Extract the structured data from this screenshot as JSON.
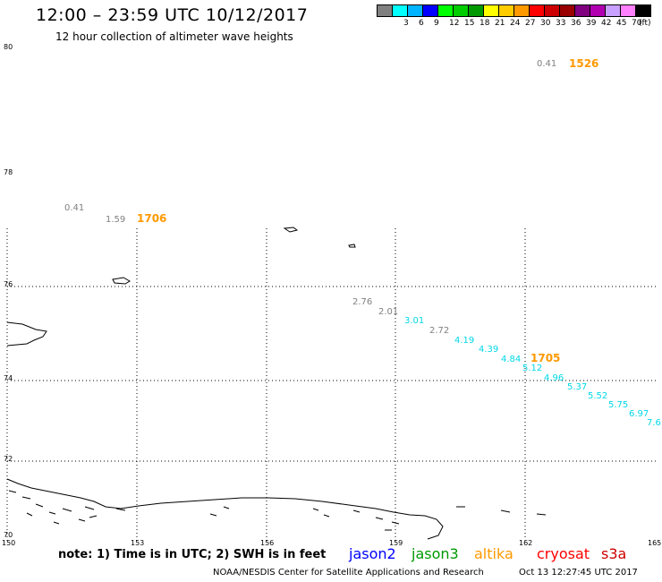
{
  "header": {
    "title": "12:00 – 23:59 UTC 10/12/2017",
    "subtitle": "12 hour collection of altimeter wave heights"
  },
  "legend": {
    "unit": "(ft)",
    "swatches": [
      {
        "color": "#808080",
        "label": ""
      },
      {
        "color": "#00ffff",
        "label": "3"
      },
      {
        "color": "#00b4ff",
        "label": "6"
      },
      {
        "color": "#0000ff",
        "label": "9"
      },
      {
        "color": "#00ff00",
        "label": "12"
      },
      {
        "color": "#00cc00",
        "label": "15"
      },
      {
        "color": "#009900",
        "label": "18"
      },
      {
        "color": "#ffff00",
        "label": "21"
      },
      {
        "color": "#ffcc00",
        "label": "24"
      },
      {
        "color": "#ff9900",
        "label": "27"
      },
      {
        "color": "#ff0000",
        "label": "30"
      },
      {
        "color": "#cc0000",
        "label": "33"
      },
      {
        "color": "#990000",
        "label": "36"
      },
      {
        "color": "#800080",
        "label": "39"
      },
      {
        "color": "#b000b0",
        "label": "42"
      },
      {
        "color": "#c8a0ff",
        "label": "45"
      },
      {
        "color": "#ff80ff",
        "label": "70"
      },
      {
        "color": "#000000",
        "label": ""
      }
    ]
  },
  "axes": {
    "lat_labels": [
      "80",
      "78",
      "76",
      "74",
      "72",
      "70"
    ],
    "lon_labels": [
      "150",
      "153",
      "156",
      "159",
      "162",
      "165"
    ]
  },
  "observations": [
    {
      "value": "0.41",
      "color": "#808080"
    },
    {
      "value": "1526",
      "color": "#ff9900",
      "time": true
    },
    {
      "value": "0.41",
      "color": "#808080"
    },
    {
      "value": "1.59",
      "color": "#808080"
    },
    {
      "value": "1706",
      "color": "#ff9900",
      "time": true
    },
    {
      "value": "2.76",
      "color": "#808080"
    },
    {
      "value": "2.01",
      "color": "#808080"
    },
    {
      "value": "3.01",
      "color": "#00d8e8"
    },
    {
      "value": "2.72",
      "color": "#808080"
    },
    {
      "value": "4.19",
      "color": "#00d8e8"
    },
    {
      "value": "4.39",
      "color": "#00d8e8"
    },
    {
      "value": "4.84",
      "color": "#00d8e8"
    },
    {
      "value": "1705",
      "color": "#ff9900",
      "time": true
    },
    {
      "value": "5.12",
      "color": "#00d8e8"
    },
    {
      "value": "4.96",
      "color": "#00d8e8"
    },
    {
      "value": "5.37",
      "color": "#00d8e8"
    },
    {
      "value": "5.52",
      "color": "#00d8e8"
    },
    {
      "value": "5.75",
      "color": "#00d8e8"
    },
    {
      "value": "6.97",
      "color": "#00d8e8"
    },
    {
      "value": "7.6",
      "color": "#00d8e8"
    }
  ],
  "footer": {
    "note": "note:  1) Time is in UTC;  2) SWH is in feet",
    "satellites": [
      {
        "name": "jason2",
        "color": "#0000ff"
      },
      {
        "name": "jason3",
        "color": "#009900"
      },
      {
        "name": "altika",
        "color": "#ff9900"
      },
      {
        "name": "cryosat",
        "color": "#ff0000"
      },
      {
        "name": "s3a",
        "color": "#cc0000"
      }
    ],
    "credit": "NOAA/NESDIS Center for Satellite Applications and Research",
    "timestamp": "Oct 13 12:27:45 UTC 2017"
  }
}
